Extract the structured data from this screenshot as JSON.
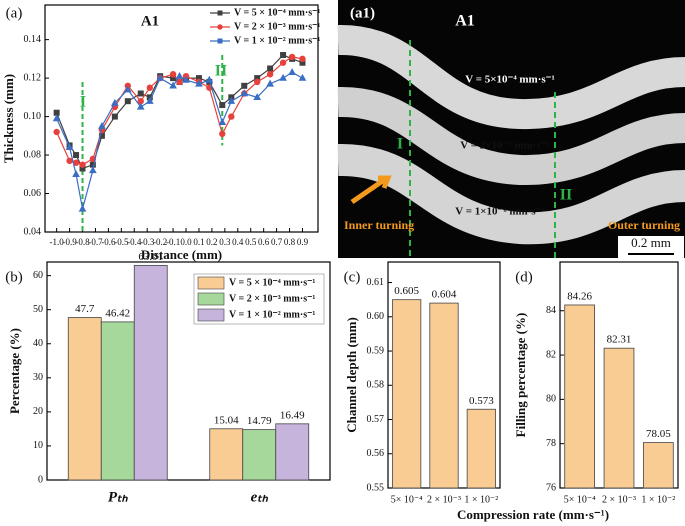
{
  "chart_data": [
    {
      "type": "line",
      "panel": "(a)",
      "annotation": "A1",
      "markers": [
        "I",
        "II"
      ],
      "xlabel": "Distance (mm)",
      "ylabel": "Thickness (mm)",
      "x": [
        -1.0,
        -0.9,
        -0.85,
        -0.8,
        -0.72,
        -0.65,
        -0.55,
        -0.45,
        -0.35,
        -0.28,
        -0.2,
        -0.1,
        -0.05,
        0.0,
        0.1,
        0.18,
        0.28,
        0.35,
        0.45,
        0.55,
        0.65,
        0.75,
        0.82,
        0.9
      ],
      "series": [
        {
          "name": "V = 5 × 10⁻⁴ mm·s⁻¹",
          "color": "#404040",
          "marker": "square",
          "values": [
            0.102,
            0.085,
            0.08,
            0.073,
            0.075,
            0.09,
            0.1,
            0.108,
            0.112,
            0.11,
            0.121,
            0.12,
            0.118,
            0.12,
            0.12,
            0.118,
            0.106,
            0.11,
            0.116,
            0.12,
            0.125,
            0.132,
            0.13,
            0.128
          ]
        },
        {
          "name": "V = 2 × 10⁻³ mm·s⁻¹",
          "color": "#e8413c",
          "marker": "circle",
          "values": [
            0.092,
            0.077,
            0.076,
            0.075,
            0.078,
            0.093,
            0.105,
            0.116,
            0.108,
            0.115,
            0.12,
            0.122,
            0.118,
            0.121,
            0.118,
            0.115,
            0.091,
            0.1,
            0.112,
            0.118,
            0.122,
            0.128,
            0.131,
            0.13
          ]
        },
        {
          "name": "V = 1 × 10⁻² mm·s⁻¹",
          "color": "#3a6fc4",
          "marker": "triangle",
          "values": [
            0.099,
            0.084,
            0.07,
            0.052,
            0.072,
            0.095,
            0.107,
            0.114,
            0.105,
            0.108,
            0.12,
            0.116,
            0.121,
            0.119,
            0.117,
            0.119,
            0.097,
            0.108,
            0.112,
            0.11,
            0.117,
            0.12,
            0.123,
            0.12
          ]
        }
      ],
      "xlim": [
        -1.09,
        1.02
      ],
      "xticks": [
        {
          "value": -1.0,
          "label": "-1.0"
        },
        -0.9,
        -0.8,
        -0.7,
        -0.6,
        -0.5,
        -0.4,
        -0.3,
        -0.2,
        -0.1,
        {
          "value": 0.0,
          "label": "0.0"
        },
        0.1,
        0.2,
        0.3,
        0.4,
        0.5,
        0.6,
        0.7,
        0.8,
        0.9
      ],
      "ylim": [
        0.04,
        0.158
      ],
      "yticks": [
        0.04,
        0.06,
        0.08,
        {
          "value": 0.1,
          "label": "0.10"
        },
        0.12,
        0.14
      ],
      "legend": "top-right",
      "grid": false
    },
    {
      "type": "bar",
      "panel": "(b)",
      "ylabel": "Percentage (%)",
      "categories": [
        "Pₜₕ",
        "eₜₕ"
      ],
      "series": [
        {
          "name": "V = 5 × 10⁻⁴ mm·s⁻¹",
          "color": "#f9cc93",
          "values": [
            47.7,
            15.04
          ]
        },
        {
          "name": "V = 2 × 10⁻³ mm·s⁻¹",
          "color": "#a6d89c",
          "values": [
            46.42,
            14.79
          ]
        },
        {
          "name": "V = 1 × 10⁻² mm·s⁻¹",
          "color": "#c6b4dc",
          "values": [
            63.01,
            16.49
          ]
        }
      ],
      "ylim": [
        0,
        64
      ],
      "yticks": [
        0,
        10,
        20,
        30,
        40,
        50,
        60
      ],
      "legend": "top-right",
      "grid": false
    },
    {
      "type": "bar",
      "panel": "(c)",
      "ylabel": "Channel depth (mm)",
      "xlabel": "Compression rate (mm·s⁻¹)",
      "categories": [
        "5× 10⁻⁴",
        "2 × 10⁻³",
        "1 × 10⁻²"
      ],
      "series": [
        {
          "color": "#f9cc93",
          "values": [
            0.605,
            0.604,
            0.573
          ]
        }
      ],
      "ylim": [
        0.55,
        0.616
      ],
      "yticks": [
        0.55,
        0.56,
        0.57,
        0.58,
        0.59,
        {
          "value": 0.6,
          "label": "0.60"
        },
        0.61
      ],
      "grid": false
    },
    {
      "type": "bar",
      "panel": "(d)",
      "ylabel": "Filling percentage (%)",
      "categories": [
        "5× 10⁻⁴",
        "2 × 10⁻³",
        "1 × 10⁻²"
      ],
      "series": [
        {
          "color": "#f9cc93",
          "values": [
            84.26,
            82.31,
            78.05
          ]
        }
      ],
      "ylim": [
        76,
        86.2
      ],
      "yticks": [
        76,
        78,
        80,
        82,
        84
      ],
      "grid": false
    }
  ],
  "micrograph": {
    "panel": "(a1)",
    "title": "A1",
    "bands": [
      "V = 5×10⁻⁴ mm·s⁻¹",
      "V = 2×10⁻³ mm·s⁻¹",
      "V = 1×10⁻² mm·s⁻¹"
    ],
    "markers": [
      "I",
      "II"
    ],
    "inner": "Inner turning",
    "outer": "Outer turning",
    "scale": "0.2 mm"
  }
}
